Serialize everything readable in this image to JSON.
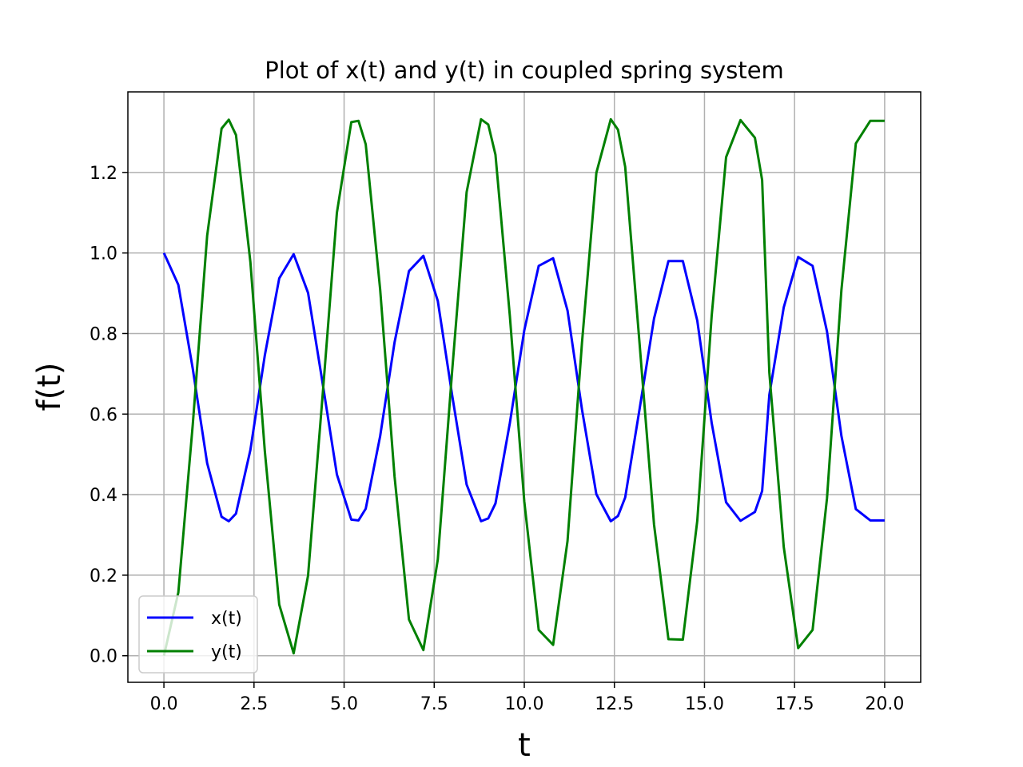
{
  "chart_data": {
    "type": "line",
    "title": "Plot of x(t) and y(t) in coupled spring system",
    "xlabel": "t",
    "ylabel": "f(t)",
    "xlim": [
      -1.0,
      21.0
    ],
    "ylim": [
      -0.066,
      1.4
    ],
    "grid": true,
    "legend_position": "lower-left",
    "x_ticks": [
      0.0,
      2.5,
      5.0,
      7.5,
      10.0,
      12.5,
      15.0,
      17.5,
      20.0
    ],
    "x_tick_labels": [
      "0.0",
      "2.5",
      "5.0",
      "7.5",
      "10.0",
      "12.5",
      "15.0",
      "17.5",
      "20.0"
    ],
    "y_ticks": [
      0.0,
      0.2,
      0.4,
      0.6,
      0.8,
      1.0,
      1.2
    ],
    "y_tick_labels": [
      "0.0",
      "0.2",
      "0.4",
      "0.6",
      "0.8",
      "1.0",
      "1.2"
    ],
    "x": [
      0.0,
      0.4,
      0.8,
      1.2,
      1.6,
      1.8,
      2.0,
      2.4,
      2.8,
      3.2,
      3.6,
      4.0,
      4.4,
      4.8,
      5.2,
      5.4,
      5.6,
      6.0,
      6.4,
      6.8,
      7.2,
      7.6,
      8.0,
      8.4,
      8.8,
      9.0,
      9.2,
      9.6,
      10.0,
      10.4,
      10.8,
      11.2,
      11.6,
      12.0,
      12.4,
      12.6,
      12.8,
      13.2,
      13.6,
      14.0,
      14.4,
      14.8,
      15.2,
      15.6,
      16.0,
      16.4,
      16.6,
      16.8,
      17.2,
      17.6,
      18.0,
      18.4,
      18.8,
      19.2,
      19.6,
      20.0
    ],
    "series": [
      {
        "name": "x(t)",
        "color": "#0000ff",
        "values": [
          1.0,
          0.921,
          0.713,
          0.478,
          0.345,
          0.334,
          0.353,
          0.511,
          0.746,
          0.937,
          0.997,
          0.901,
          0.679,
          0.45,
          0.338,
          0.336,
          0.365,
          0.545,
          0.778,
          0.955,
          0.993,
          0.881,
          0.646,
          0.425,
          0.334,
          0.341,
          0.378,
          0.578,
          0.808,
          0.968,
          0.987,
          0.857,
          0.612,
          0.401,
          0.334,
          0.347,
          0.393,
          0.613,
          0.837,
          0.98,
          0.98,
          0.832,
          0.578,
          0.381,
          0.335,
          0.357,
          0.409,
          0.648,
          0.865,
          0.99,
          0.968,
          0.805,
          0.546,
          0.364,
          0.336,
          0.336
        ]
      },
      {
        "name": "y(t)",
        "color": "#008000",
        "values": [
          0.0,
          0.157,
          0.573,
          1.043,
          1.309,
          1.331,
          1.293,
          0.977,
          0.508,
          0.127,
          0.006,
          0.199,
          0.642,
          1.1,
          1.325,
          1.328,
          1.27,
          0.91,
          0.445,
          0.09,
          0.014,
          0.239,
          0.709,
          1.151,
          1.332,
          1.319,
          1.244,
          0.843,
          0.383,
          0.064,
          0.027,
          0.285,
          0.776,
          1.199,
          1.332,
          1.306,
          1.214,
          0.774,
          0.326,
          0.041,
          0.04,
          0.335,
          0.844,
          1.238,
          1.33,
          1.286,
          1.181,
          0.703,
          0.27,
          0.019,
          0.064,
          0.391,
          0.908,
          1.272,
          1.328,
          1.328
        ]
      }
    ]
  }
}
